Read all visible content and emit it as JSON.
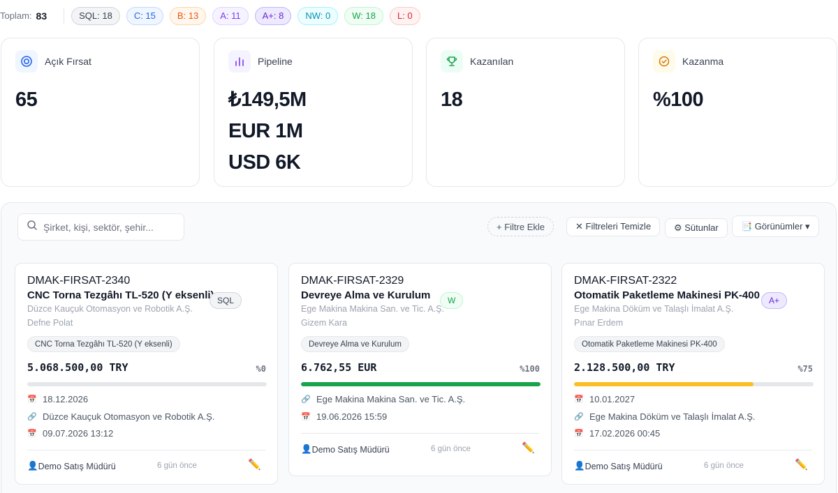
{
  "summary": {
    "total_label": "Toplam:",
    "total_value": "83",
    "badges": [
      {
        "key": "sql",
        "text": "SQL: 18"
      },
      {
        "key": "c",
        "text": "C: 15"
      },
      {
        "key": "b",
        "text": "B: 13"
      },
      {
        "key": "a",
        "text": "A: 11"
      },
      {
        "key": "ap",
        "text": "A+: 8"
      },
      {
        "key": "nw",
        "text": "NW: 0"
      },
      {
        "key": "w",
        "text": "W: 18"
      },
      {
        "key": "l",
        "text": "L: 0"
      }
    ]
  },
  "stats": [
    {
      "label": "Açık Fırsat",
      "icon": "target-icon",
      "values": [
        "65"
      ],
      "icon_color": "#2563eb",
      "icon_bg": "#eff6ff"
    },
    {
      "label": "Pipeline",
      "icon": "bar-chart-icon",
      "values": [
        "₺149,5M",
        "EUR 1M",
        "USD 6K"
      ],
      "icon_color": "#7c3aed",
      "icon_bg": "#f5f3ff"
    },
    {
      "label": "Kazanılan",
      "icon": "trophy-icon",
      "values": [
        "18"
      ],
      "icon_color": "#16a34a",
      "icon_bg": "#ecfdf5"
    },
    {
      "label": "Kazanma",
      "icon": "check-circle-icon",
      "values": [
        "%100"
      ],
      "icon_color": "#d97706",
      "icon_bg": "#fffbeb"
    }
  ],
  "toolbar": {
    "search_placeholder": "Şirket, kişi, sektör, şehir...",
    "add_filter": "+ Filtre Ekle",
    "clear_filters": "✕ Filtreleri Temizle",
    "columns": "⚙ Sütunlar",
    "views": "📑 Görünümler ▾"
  },
  "cards": [
    {
      "code": "DMAK-FIRSAT-2340",
      "title": "CNC Torna Tezgâhı TL-520 (Y eksenli)",
      "company": "Düzce Kauçuk Otomasyon ve Robotik A.Ş.",
      "person": "Defne Polat",
      "stage": "SQL",
      "stage_key": "sql",
      "product": "CNC Torna Tezgâhı TL-520 (Y eksenli)",
      "amount": "5.068.500,00 TRY",
      "probability_label": "%0",
      "probability": 0,
      "bar_color": "#e5e7eb",
      "details": [
        {
          "icon": "calendar-icon",
          "text": "18.12.2026"
        },
        {
          "icon": "link-icon",
          "text": "Düzce Kauçuk Otomasyon ve Robotik A.Ş."
        },
        {
          "icon": "calendar-icon",
          "text": "09.07.2026 13:12"
        }
      ],
      "owner": "Demo Satış Müdürü",
      "ago": "6 gün önce"
    },
    {
      "code": "DMAK-FIRSAT-2329",
      "title": "Devreye Alma ve Kurulum",
      "company": "Ege Makina Makina San. ve Tic. A.Ş.",
      "person": "Gizem Kara",
      "stage": "W",
      "stage_key": "w",
      "product": "Devreye Alma ve Kurulum",
      "amount": "6.762,55 EUR",
      "probability_label": "%100",
      "probability": 100,
      "bar_color": "#16a34a",
      "details": [
        {
          "icon": "link-icon",
          "text": "Ege Makina Makina San. ve Tic. A.Ş."
        },
        {
          "icon": "calendar-icon",
          "text": "19.06.2026 15:59"
        }
      ],
      "owner": "Demo Satış Müdürü",
      "ago": "6 gün önce"
    },
    {
      "code": "DMAK-FIRSAT-2322",
      "title": "Otomatik Paketleme Makinesi PK-400",
      "company": "Ege Makina Döküm ve Talaşlı İmalat A.Ş.",
      "person": "Pınar Erdem",
      "stage": "A+",
      "stage_key": "ap",
      "product": "Otomatik Paketleme Makinesi PK-400",
      "amount": "2.128.500,00 TRY",
      "probability_label": "%75",
      "probability": 75,
      "bar_color": "#fbbf24",
      "details": [
        {
          "icon": "calendar-icon",
          "text": "10.01.2027"
        },
        {
          "icon": "link-icon",
          "text": "Ege Makina Döküm ve Talaşlı İmalat A.Ş."
        },
        {
          "icon": "calendar-icon",
          "text": "17.02.2026 00:45"
        }
      ],
      "owner": "Demo Satış Müdürü",
      "ago": "6 gün önce"
    }
  ]
}
